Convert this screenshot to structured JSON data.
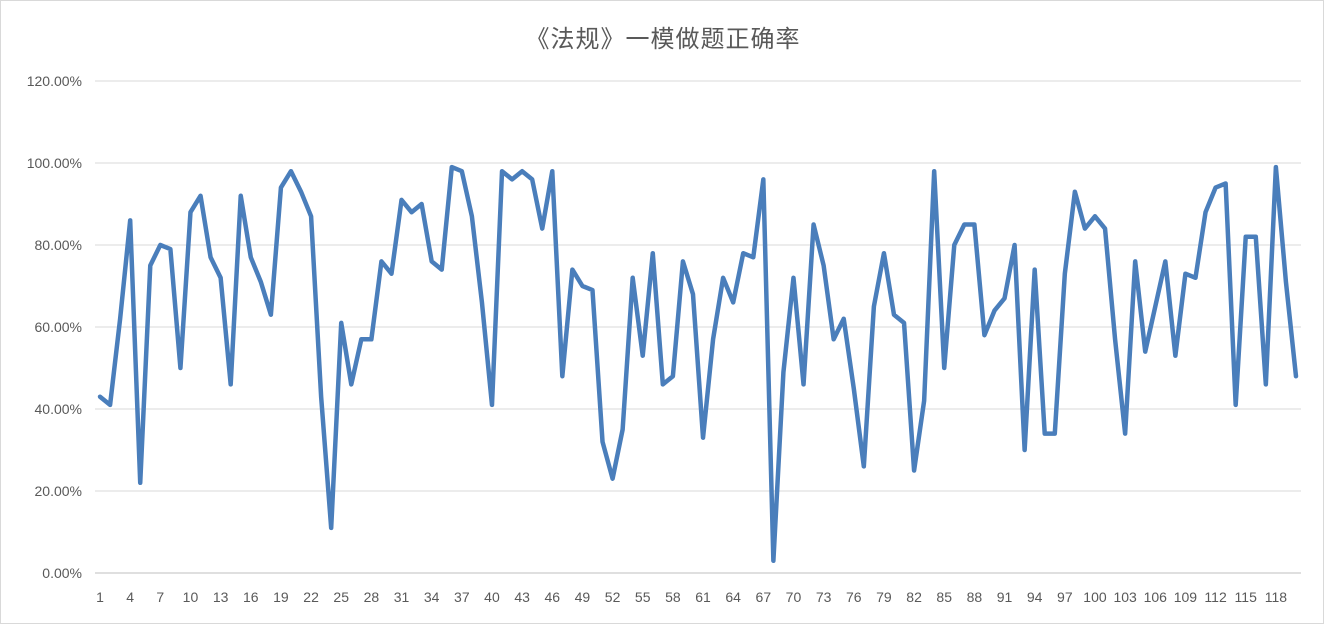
{
  "chart_data": {
    "type": "line",
    "title": "《法规》一模做题正确率",
    "xlabel": "",
    "ylabel": "",
    "ylim": [
      0,
      1.2
    ],
    "y_ticks": [
      0,
      0.2,
      0.4,
      0.6,
      0.8,
      1.0,
      1.2
    ],
    "y_tick_labels": [
      "0.00%",
      "20.00%",
      "40.00%",
      "60.00%",
      "80.00%",
      "100.00%",
      "120.00%"
    ],
    "x_tick_labels": [
      "1",
      "4",
      "7",
      "10",
      "13",
      "16",
      "19",
      "22",
      "25",
      "28",
      "31",
      "34",
      "37",
      "40",
      "43",
      "46",
      "49",
      "52",
      "55",
      "58",
      "61",
      "64",
      "67",
      "70",
      "73",
      "76",
      "79",
      "82",
      "85",
      "88",
      "91",
      "94",
      "97",
      "100",
      "103",
      "106",
      "109",
      "112",
      "115",
      "118"
    ],
    "grid": true,
    "legend": "none",
    "line_color": "#4a7ebb",
    "series": [
      {
        "values": [
          0.43,
          0.41,
          0.62,
          0.86,
          0.22,
          0.75,
          0.8,
          0.79,
          0.5,
          0.88,
          0.92,
          0.77,
          0.72,
          0.46,
          0.92,
          0.77,
          0.71,
          0.63,
          0.94,
          0.98,
          0.93,
          0.87,
          0.43,
          0.11,
          0.61,
          0.46,
          0.57,
          0.57,
          0.76,
          0.73,
          0.91,
          0.88,
          0.9,
          0.76,
          0.74,
          0.99,
          0.98,
          0.87,
          0.66,
          0.41,
          0.98,
          0.96,
          0.98,
          0.96,
          0.84,
          0.98,
          0.48,
          0.74,
          0.7,
          0.69,
          0.32,
          0.23,
          0.35,
          0.72,
          0.53,
          0.78,
          0.46,
          0.48,
          0.76,
          0.68,
          0.33,
          0.57,
          0.72,
          0.66,
          0.78,
          0.77,
          0.96,
          0.03,
          0.49,
          0.72,
          0.46,
          0.85,
          0.75,
          0.57,
          0.62,
          0.45,
          0.26,
          0.65,
          0.78,
          0.63,
          0.61,
          0.25,
          0.42,
          0.98,
          0.5,
          0.8,
          0.85,
          0.85,
          0.58,
          0.64,
          0.67,
          0.8,
          0.3,
          0.74,
          0.34,
          0.34,
          0.73,
          0.93,
          0.84,
          0.87,
          0.84,
          0.57,
          0.34,
          0.76,
          0.54,
          0.65,
          0.76,
          0.53,
          0.73,
          0.72,
          0.88,
          0.94,
          0.95,
          0.41,
          0.82,
          0.82,
          0.46,
          0.99,
          0.71,
          0.48
        ]
      }
    ]
  }
}
